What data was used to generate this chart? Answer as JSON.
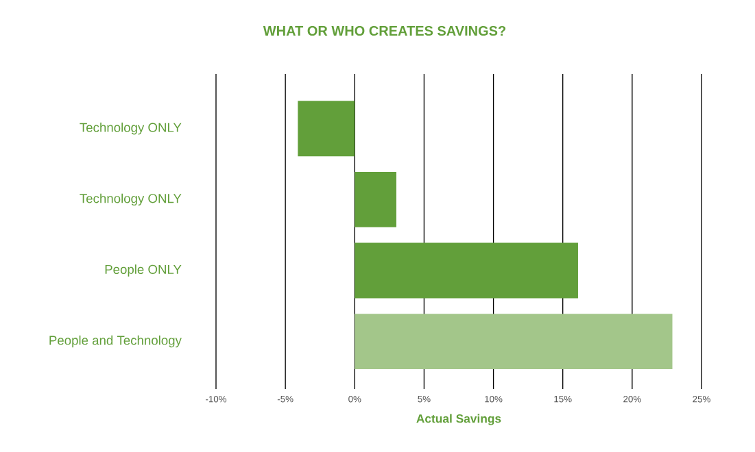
{
  "chart_data": {
    "type": "bar",
    "orientation": "horizontal",
    "title": "WHAT OR WHO CREATES SAVINGS?",
    "xlabel": "Actual Savings",
    "categories": [
      "Technology ONLY",
      "Technology ONLY",
      "People ONLY",
      "People and Technology"
    ],
    "values": [
      -4.1,
      3,
      16.1,
      22.9
    ],
    "colors": [
      "#629f3a",
      "#629f3a",
      "#629f3a",
      "#a3c68a"
    ],
    "xlim": [
      -10,
      25
    ],
    "xticks": [
      {
        "value": -10,
        "label": "-10%"
      },
      {
        "value": -5,
        "label": "-5%"
      },
      {
        "value": 0,
        "label": "0%"
      },
      {
        "value": 5,
        "label": "5%"
      },
      {
        "value": 10,
        "label": "10%"
      },
      {
        "value": 15,
        "label": "15%"
      },
      {
        "value": 20,
        "label": "20%"
      },
      {
        "value": 25,
        "label": "25%"
      }
    ],
    "grid": "x"
  }
}
